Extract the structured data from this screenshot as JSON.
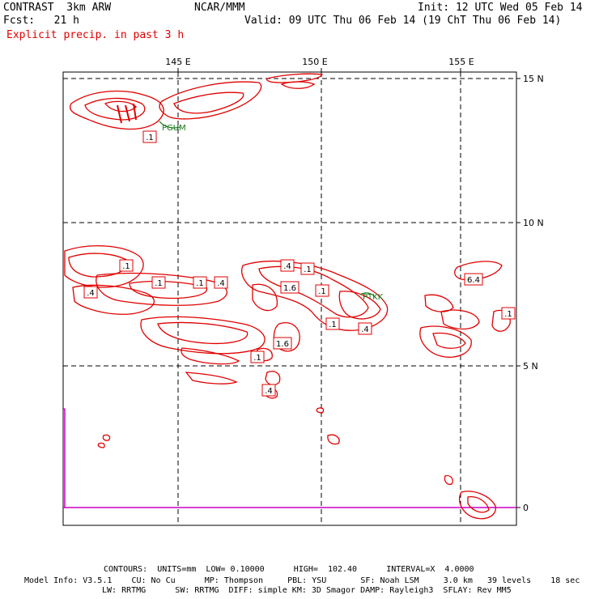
{
  "header": {
    "model": "CONTRAST  3km ARW",
    "org": "NCAR/MMM",
    "init": "Init: 12 UTC Wed 05 Feb 14",
    "fcst": "Fcst:   21 h",
    "valid": "Valid: 09 UTC Thu 06 Feb 14 (19 ChT Thu 06 Feb 14)",
    "field": "Explicit precip. in past 3 h"
  },
  "axes": {
    "lon_labels": [
      "145 E",
      "150 E",
      "155 E"
    ],
    "lat_labels": [
      "15 N",
      "10 N",
      "5 N",
      "0"
    ]
  },
  "stations": [
    {
      "id": "PGUM"
    },
    {
      "id": "PTKK"
    }
  ],
  "contour_labels": [
    ".1",
    ".1",
    ".4",
    ".1",
    ".1",
    ".4",
    ".4",
    ".1",
    "1.6",
    ".1",
    ".1",
    ".4",
    "1.6",
    ".1",
    ".4",
    "6.4",
    ".1"
  ],
  "footer": {
    "contours": "CONTOURS:  UNITS=mm  LOW= 0.10000      HIGH=  102.40      INTERVAL=X  4.0000",
    "model_info_1": "Model Info: V3.5.1    CU: No Cu      MP: Thompson     PBL: YSU       SF: Noah LSM     3.0 km   39 levels    18 sec",
    "model_info_2": "LW: RRTMG      SW: RRTMG  DIFF: simple KM: 3D Smagor DAMP: Rayleigh3  SFLAY: Rev MM5"
  },
  "colors": {
    "contour": "#e00000",
    "station": "#1a7a1a",
    "equator_line": "#cc00cc",
    "grid": "#000000"
  }
}
